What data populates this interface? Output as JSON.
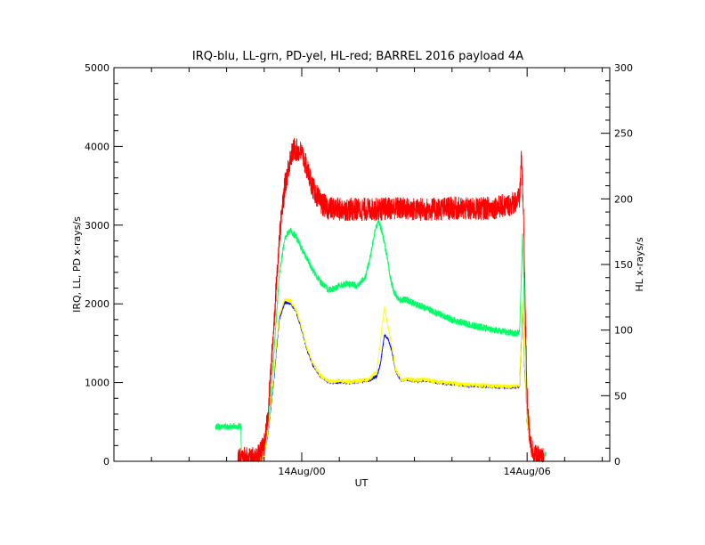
{
  "chart_data": {
    "type": "line",
    "title": "IRQ-blu, LL-grn, PD-yel, HL-red; BARREL 2016 payload 4A",
    "xlabel": "UT",
    "ylabel_left": "IRQ, LL, PD x-rays/s",
    "ylabel_right": "HL x-rays/s",
    "x_unit": "hours since 14Aug/00",
    "xlim": [
      -5.0,
      8.2
    ],
    "ylim_left": [
      0,
      5000
    ],
    "ylim_right": [
      0,
      300
    ],
    "x_ticks": [
      {
        "value": 0,
        "label": "14Aug/00"
      },
      {
        "value": 6,
        "label": "14Aug/06"
      }
    ],
    "y_ticks_left": [
      "0",
      "1000",
      "2000",
      "3000",
      "4000",
      "5000"
    ],
    "y_ticks_right": [
      "0",
      "50",
      "100",
      "150",
      "200",
      "250",
      "300"
    ],
    "series": [
      {
        "name": "IRQ",
        "axis": "left",
        "color": "#0000ff",
        "noise": 20,
        "x": [
          -1.7,
          -1.15,
          -1.0,
          -0.9,
          -0.75,
          -0.6,
          -0.45,
          -0.3,
          -0.15,
          -0.05,
          0.05,
          0.15,
          0.3,
          0.5,
          0.7,
          0.9,
          1.0,
          1.2,
          1.5,
          1.8,
          2.0,
          2.1,
          2.2,
          2.3,
          2.4,
          2.5,
          2.65,
          2.8,
          3.0,
          3.3,
          3.6,
          4.0,
          4.5,
          5.0,
          5.4,
          5.7,
          5.8,
          5.88,
          5.93,
          5.97,
          6.0,
          6.05,
          6.12,
          6.2,
          6.3,
          6.45
        ],
        "y": [
          0,
          0,
          80,
          350,
          1000,
          1800,
          2020,
          2010,
          1900,
          1750,
          1580,
          1400,
          1220,
          1080,
          1010,
          1000,
          1010,
          1000,
          1010,
          1030,
          1080,
          1250,
          1600,
          1550,
          1400,
          1150,
          1020,
          1040,
          1020,
          1030,
          1000,
          980,
          960,
          950,
          940,
          940,
          960,
          2000,
          1200,
          900,
          500,
          300,
          120,
          50,
          20,
          0
        ]
      },
      {
        "name": "LL",
        "axis": "left",
        "color": "#00ff66",
        "noise": 45,
        "x": [
          -2.3,
          -1.62,
          -1.6,
          -1.15,
          -1.0,
          -0.9,
          -0.75,
          -0.6,
          -0.45,
          -0.3,
          -0.15,
          0.0,
          0.15,
          0.3,
          0.5,
          0.7,
          0.9,
          1.0,
          1.2,
          1.5,
          1.7,
          1.85,
          1.95,
          2.05,
          2.15,
          2.25,
          2.35,
          2.45,
          2.6,
          2.8,
          3.0,
          3.3,
          3.6,
          4.0,
          4.5,
          5.0,
          5.4,
          5.7,
          5.8,
          5.88,
          5.93,
          5.97,
          6.0,
          6.05,
          6.12,
          6.2,
          6.3,
          6.45,
          6.5
        ],
        "y": [
          440,
          440,
          0,
          0,
          100,
          400,
          1300,
          2350,
          2850,
          2930,
          2850,
          2700,
          2560,
          2420,
          2280,
          2180,
          2200,
          2230,
          2250,
          2230,
          2350,
          2650,
          2950,
          3050,
          2900,
          2650,
          2350,
          2150,
          2050,
          2050,
          2000,
          1950,
          1880,
          1800,
          1730,
          1680,
          1650,
          1620,
          1650,
          2900,
          1800,
          1300,
          700,
          400,
          150,
          60,
          30,
          80,
          80
        ]
      },
      {
        "name": "PD",
        "axis": "left",
        "color": "#ffff00",
        "noise": 28,
        "x": [
          -1.7,
          -1.15,
          -1.0,
          -0.9,
          -0.75,
          -0.6,
          -0.45,
          -0.3,
          -0.15,
          -0.05,
          0.05,
          0.15,
          0.3,
          0.5,
          0.7,
          0.9,
          1.0,
          1.2,
          1.5,
          1.8,
          2.0,
          2.1,
          2.2,
          2.3,
          2.4,
          2.5,
          2.65,
          2.8,
          3.0,
          3.3,
          3.6,
          4.0,
          4.5,
          5.0,
          5.4,
          5.7,
          5.8,
          5.88,
          5.93,
          5.97,
          6.0,
          6.05,
          6.12,
          6.2,
          6.3,
          6.45
        ],
        "y": [
          0,
          0,
          90,
          380,
          1050,
          1850,
          2060,
          2040,
          1920,
          1770,
          1600,
          1420,
          1240,
          1090,
          1020,
          1010,
          1020,
          1010,
          1020,
          1040,
          1150,
          1550,
          1950,
          1700,
          1450,
          1170,
          1030,
          1050,
          1030,
          1040,
          1010,
          990,
          970,
          960,
          950,
          950,
          970,
          2080,
          1250,
          920,
          520,
          310,
          130,
          60,
          30,
          0
        ]
      },
      {
        "name": "HL",
        "axis": "right",
        "color": "#ff0000",
        "noise": 9,
        "x": [
          -1.7,
          -1.25,
          -1.15,
          -1.0,
          -0.9,
          -0.75,
          -0.6,
          -0.45,
          -0.3,
          -0.2,
          0.0,
          0.15,
          0.3,
          0.5,
          0.7,
          1.0,
          1.5,
          2.0,
          2.5,
          3.0,
          3.5,
          4.0,
          4.5,
          5.0,
          5.5,
          5.8,
          5.85,
          5.92,
          5.96,
          6.0,
          6.05,
          6.12,
          6.2,
          6.3,
          6.45
        ],
        "y": [
          2,
          2,
          4,
          12,
          35,
          100,
          170,
          210,
          232,
          238,
          235,
          222,
          208,
          197,
          193,
          192,
          192,
          192,
          193,
          192,
          192,
          193,
          192,
          193,
          195,
          200,
          235,
          170,
          100,
          50,
          25,
          10,
          5,
          2,
          2
        ]
      }
    ]
  }
}
